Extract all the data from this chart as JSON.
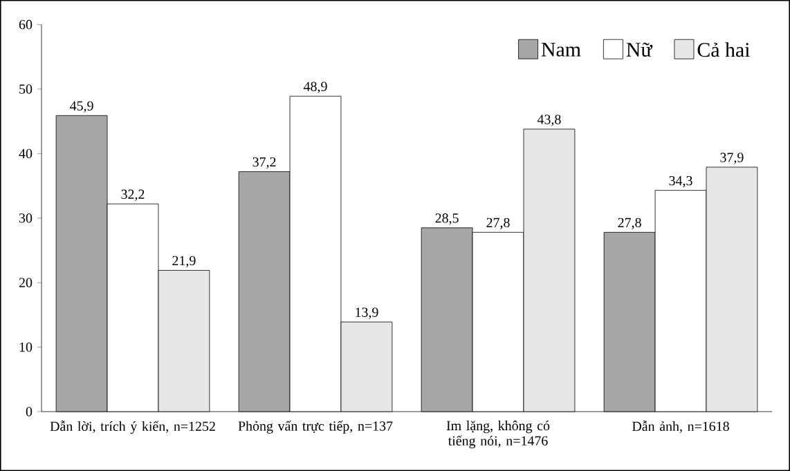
{
  "chart_data": {
    "type": "bar",
    "categories": [
      "Dẫn lời, trích ý kiến, n=1252",
      "Phỏng vấn trực tiếp, n=137",
      "Im lặng, không có tiếng nói, n=1476",
      "Dẫn ảnh, n=1618"
    ],
    "series": [
      {
        "name": "Nam",
        "color": "#a6a6a6",
        "values": [
          45.9,
          37.2,
          28.5,
          27.8
        ],
        "value_labels": [
          "45,9",
          "37,2",
          "28,5",
          "27,8"
        ]
      },
      {
        "name": "Nữ",
        "color": "#ffffff",
        "values": [
          32.2,
          48.9,
          27.8,
          34.3
        ],
        "value_labels": [
          "32,2",
          "48,9",
          "27,8",
          "34,3"
        ]
      },
      {
        "name": "Cả hai",
        "color": "#e6e6e6",
        "values": [
          21.9,
          13.9,
          43.8,
          37.9
        ],
        "value_labels": [
          "21,9",
          "13,9",
          "43,8",
          "37,9"
        ]
      }
    ],
    "ylim": [
      0,
      60
    ],
    "yticks": [
      0,
      10,
      20,
      30,
      40,
      50,
      60
    ],
    "grid": false,
    "legend": "top right"
  }
}
